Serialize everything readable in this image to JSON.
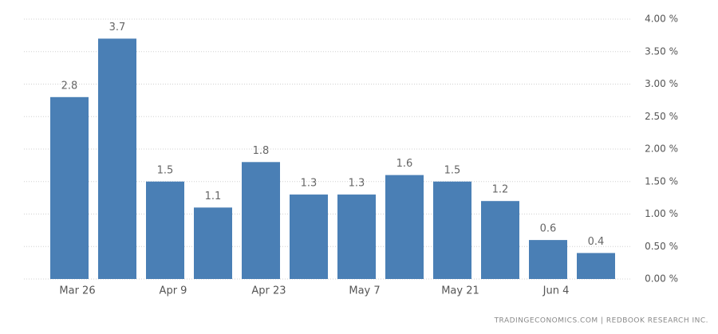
{
  "chart_data": {
    "type": "bar",
    "categories": [
      "Mar 26",
      null,
      "Apr 9",
      null,
      "Apr 23",
      null,
      "May 7",
      null,
      "May 21",
      null,
      "Jun 4",
      null
    ],
    "values": [
      2.8,
      3.7,
      1.5,
      1.1,
      1.8,
      1.3,
      1.3,
      1.6,
      1.5,
      1.2,
      0.6,
      0.4
    ],
    "color": "#4a7fb5",
    "ylim": [
      0,
      4
    ],
    "yticks": [
      {
        "value": 0,
        "label": "0.00 %"
      },
      {
        "value": 0.5,
        "label": "0.50 %"
      },
      {
        "value": 1,
        "label": "1.00 %"
      },
      {
        "value": 1.5,
        "label": "1.50 %"
      },
      {
        "value": 2,
        "label": "2.00 %"
      },
      {
        "value": 2.5,
        "label": "2.50 %"
      },
      {
        "value": 3,
        "label": "3.00 %"
      },
      {
        "value": 3.5,
        "label": "3.50 %"
      },
      {
        "value": 4,
        "label": "4.00 %"
      }
    ],
    "grid": true,
    "source": "TRADINGECONOMICS.COM  |  REDBOOK RESEARCH INC."
  }
}
